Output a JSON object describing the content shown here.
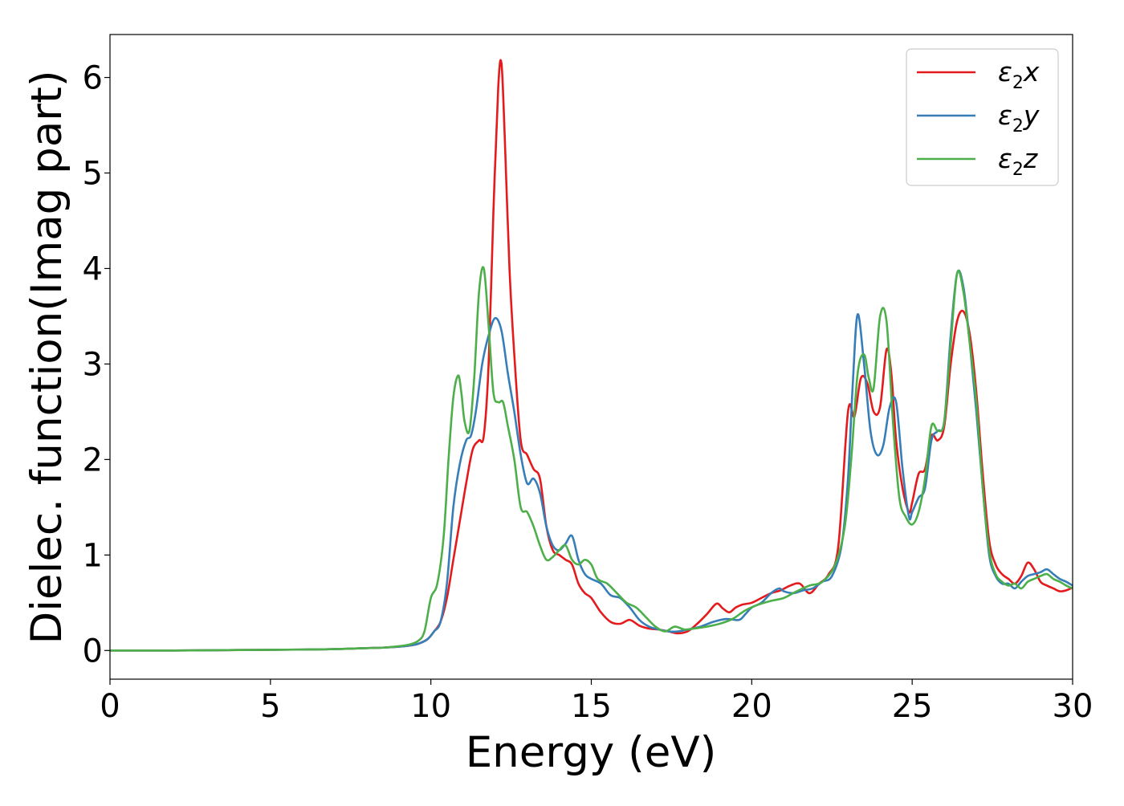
{
  "chart_data": {
    "type": "line",
    "title": "",
    "xlabel": "Energy (eV)",
    "ylabel": "Dielec. function(Imag part)",
    "xlim": [
      0,
      30
    ],
    "ylim": [
      -0.3,
      6.45
    ],
    "xticks": [
      0,
      5,
      10,
      15,
      20,
      25,
      30
    ],
    "yticks": [
      0,
      1,
      2,
      3,
      4,
      5,
      6
    ],
    "xtick_labels": [
      "0",
      "5",
      "10",
      "15",
      "20",
      "25",
      "30"
    ],
    "ytick_labels": [
      "0",
      "1",
      "2",
      "3",
      "4",
      "5",
      "6"
    ],
    "grid": false,
    "legend_position": "upper right",
    "series": [
      {
        "name": "ε₂x",
        "legend_base": "ε",
        "legend_sub": "2",
        "legend_var": "x",
        "color": "#e41a1c",
        "x": [
          0,
          2,
          4,
          6,
          7,
          8,
          8.5,
          9,
          9.3,
          9.6,
          9.9,
          10.1,
          10.3,
          10.5,
          10.7,
          10.9,
          11.1,
          11.3,
          11.5,
          11.65,
          11.8,
          11.95,
          12.1,
          12.2,
          12.3,
          12.45,
          12.6,
          12.8,
          13.0,
          13.2,
          13.4,
          13.6,
          13.8,
          14.0,
          14.2,
          14.4,
          14.6,
          14.8,
          15.0,
          15.3,
          15.6,
          15.9,
          16.2,
          16.5,
          16.8,
          17.1,
          17.4,
          17.7,
          18.0,
          18.3,
          18.6,
          18.9,
          19.1,
          19.3,
          19.5,
          19.7,
          20.0,
          20.3,
          20.6,
          20.9,
          21.2,
          21.5,
          21.8,
          22.1,
          22.4,
          22.7,
          23.0,
          23.2,
          23.4,
          23.6,
          23.8,
          24.0,
          24.2,
          24.35,
          24.5,
          24.7,
          24.9,
          25.0,
          25.2,
          25.4,
          25.6,
          25.8,
          26.0,
          26.2,
          26.4,
          26.6,
          26.8,
          27.0,
          27.2,
          27.4,
          27.6,
          27.8,
          28.0,
          28.2,
          28.4,
          28.6,
          28.8,
          29.0,
          29.2,
          29.4,
          29.6,
          29.8,
          30.0
        ],
        "y": [
          0.0,
          0.0,
          0.005,
          0.01,
          0.015,
          0.025,
          0.03,
          0.04,
          0.05,
          0.07,
          0.12,
          0.2,
          0.3,
          0.55,
          0.95,
          1.35,
          1.75,
          2.1,
          2.2,
          2.25,
          3.0,
          4.6,
          5.9,
          6.15,
          5.4,
          4.0,
          3.1,
          2.2,
          2.05,
          1.9,
          1.8,
          1.3,
          1.05,
          1.0,
          0.95,
          0.9,
          0.7,
          0.6,
          0.55,
          0.4,
          0.3,
          0.28,
          0.32,
          0.26,
          0.23,
          0.22,
          0.2,
          0.18,
          0.2,
          0.28,
          0.38,
          0.49,
          0.44,
          0.4,
          0.45,
          0.48,
          0.5,
          0.55,
          0.6,
          0.63,
          0.68,
          0.7,
          0.6,
          0.7,
          0.8,
          1.1,
          2.5,
          2.45,
          2.85,
          2.8,
          2.5,
          2.55,
          3.15,
          2.9,
          2.2,
          1.7,
          1.45,
          1.55,
          1.85,
          1.9,
          2.25,
          2.2,
          2.35,
          3.0,
          3.45,
          3.55,
          3.3,
          2.7,
          1.85,
          1.15,
          0.9,
          0.8,
          0.75,
          0.7,
          0.78,
          0.92,
          0.85,
          0.72,
          0.68,
          0.65,
          0.62,
          0.63,
          0.66
        ]
      },
      {
        "name": "ε₂y",
        "legend_base": "ε",
        "legend_sub": "2",
        "legend_var": "y",
        "color": "#377eb8",
        "x": [
          0,
          2,
          4,
          6,
          7,
          8,
          8.5,
          9,
          9.3,
          9.6,
          9.9,
          10.1,
          10.3,
          10.5,
          10.7,
          10.9,
          11.1,
          11.25,
          11.4,
          11.6,
          11.8,
          12.0,
          12.2,
          12.4,
          12.6,
          12.8,
          13.0,
          13.2,
          13.4,
          13.6,
          13.8,
          14.0,
          14.2,
          14.4,
          14.6,
          14.8,
          15.0,
          15.3,
          15.6,
          15.9,
          16.2,
          16.5,
          16.8,
          17.1,
          17.4,
          17.7,
          18.0,
          18.4,
          18.8,
          19.2,
          19.6,
          19.8,
          20.0,
          20.3,
          20.6,
          20.85,
          21.0,
          21.3,
          21.6,
          21.9,
          22.2,
          22.5,
          22.8,
          23.0,
          23.15,
          23.3,
          23.5,
          23.7,
          23.9,
          24.1,
          24.3,
          24.5,
          24.7,
          24.9,
          25.0,
          25.2,
          25.4,
          25.6,
          25.8,
          26.0,
          26.2,
          26.4,
          26.6,
          26.8,
          27.0,
          27.2,
          27.4,
          27.6,
          27.8,
          28.0,
          28.2,
          28.4,
          28.6,
          28.8,
          29.0,
          29.2,
          29.4,
          29.6,
          29.8,
          30.0
        ],
        "y": [
          0.0,
          0.0,
          0.005,
          0.01,
          0.015,
          0.025,
          0.03,
          0.04,
          0.05,
          0.07,
          0.12,
          0.2,
          0.3,
          0.7,
          1.5,
          1.95,
          2.2,
          2.25,
          2.5,
          3.0,
          3.3,
          3.48,
          3.35,
          2.9,
          2.5,
          2.05,
          1.75,
          1.8,
          1.65,
          1.3,
          1.1,
          1.05,
          1.12,
          1.2,
          0.95,
          0.8,
          0.75,
          0.7,
          0.58,
          0.55,
          0.45,
          0.32,
          0.25,
          0.22,
          0.2,
          0.2,
          0.22,
          0.25,
          0.3,
          0.33,
          0.32,
          0.38,
          0.45,
          0.5,
          0.6,
          0.65,
          0.62,
          0.6,
          0.63,
          0.65,
          0.72,
          0.78,
          1.1,
          1.8,
          2.8,
          3.52,
          3.0,
          2.3,
          2.05,
          2.15,
          2.55,
          2.6,
          1.9,
          1.4,
          1.45,
          1.6,
          1.7,
          2.2,
          2.3,
          2.4,
          3.3,
          3.95,
          3.8,
          3.2,
          2.5,
          1.7,
          1.0,
          0.78,
          0.7,
          0.7,
          0.65,
          0.72,
          0.78,
          0.8,
          0.82,
          0.85,
          0.8,
          0.75,
          0.72,
          0.68
        ]
      },
      {
        "name": "ε₂z",
        "legend_base": "ε",
        "legend_sub": "2",
        "legend_var": "z",
        "color": "#4daf4a",
        "x": [
          0,
          2,
          4,
          6,
          7,
          8,
          8.5,
          9,
          9.3,
          9.6,
          9.8,
          10.0,
          10.2,
          10.4,
          10.55,
          10.7,
          10.85,
          10.95,
          11.05,
          11.2,
          11.35,
          11.5,
          11.65,
          11.8,
          11.95,
          12.1,
          12.25,
          12.4,
          12.6,
          12.8,
          13.0,
          13.2,
          13.4,
          13.6,
          13.8,
          14.0,
          14.2,
          14.4,
          14.6,
          14.8,
          15.0,
          15.2,
          15.5,
          15.8,
          16.1,
          16.4,
          16.7,
          17.0,
          17.3,
          17.6,
          17.9,
          18.2,
          18.6,
          19.0,
          19.4,
          19.8,
          20.2,
          20.6,
          21.0,
          21.4,
          21.8,
          22.2,
          22.6,
          22.9,
          23.1,
          23.3,
          23.5,
          23.65,
          23.8,
          24.0,
          24.2,
          24.4,
          24.6,
          24.8,
          25.0,
          25.2,
          25.4,
          25.6,
          25.8,
          26.0,
          26.2,
          26.4,
          26.6,
          26.8,
          27.0,
          27.2,
          27.4,
          27.6,
          27.8,
          28.0,
          28.2,
          28.4,
          28.6,
          28.8,
          29.0,
          29.2,
          29.4,
          29.6,
          29.8,
          30.0
        ],
        "y": [
          0.0,
          0.0,
          0.005,
          0.01,
          0.015,
          0.025,
          0.03,
          0.045,
          0.06,
          0.1,
          0.2,
          0.55,
          0.7,
          1.2,
          2.0,
          2.65,
          2.88,
          2.7,
          2.4,
          2.3,
          2.85,
          3.75,
          4.0,
          3.4,
          2.7,
          2.6,
          2.6,
          2.35,
          2.0,
          1.5,
          1.45,
          1.3,
          1.1,
          0.95,
          0.98,
          1.05,
          1.1,
          0.95,
          0.9,
          0.95,
          0.9,
          0.75,
          0.7,
          0.6,
          0.5,
          0.45,
          0.35,
          0.25,
          0.2,
          0.25,
          0.22,
          0.23,
          0.25,
          0.28,
          0.33,
          0.42,
          0.48,
          0.52,
          0.55,
          0.62,
          0.68,
          0.72,
          0.9,
          1.3,
          2.0,
          2.9,
          3.1,
          2.85,
          2.75,
          3.5,
          3.45,
          2.4,
          1.6,
          1.4,
          1.32,
          1.45,
          1.8,
          2.35,
          2.3,
          2.4,
          3.2,
          3.95,
          3.75,
          3.2,
          2.6,
          1.7,
          1.05,
          0.8,
          0.72,
          0.68,
          0.7,
          0.65,
          0.72,
          0.75,
          0.78,
          0.8,
          0.75,
          0.72,
          0.68,
          0.65
        ]
      }
    ]
  }
}
